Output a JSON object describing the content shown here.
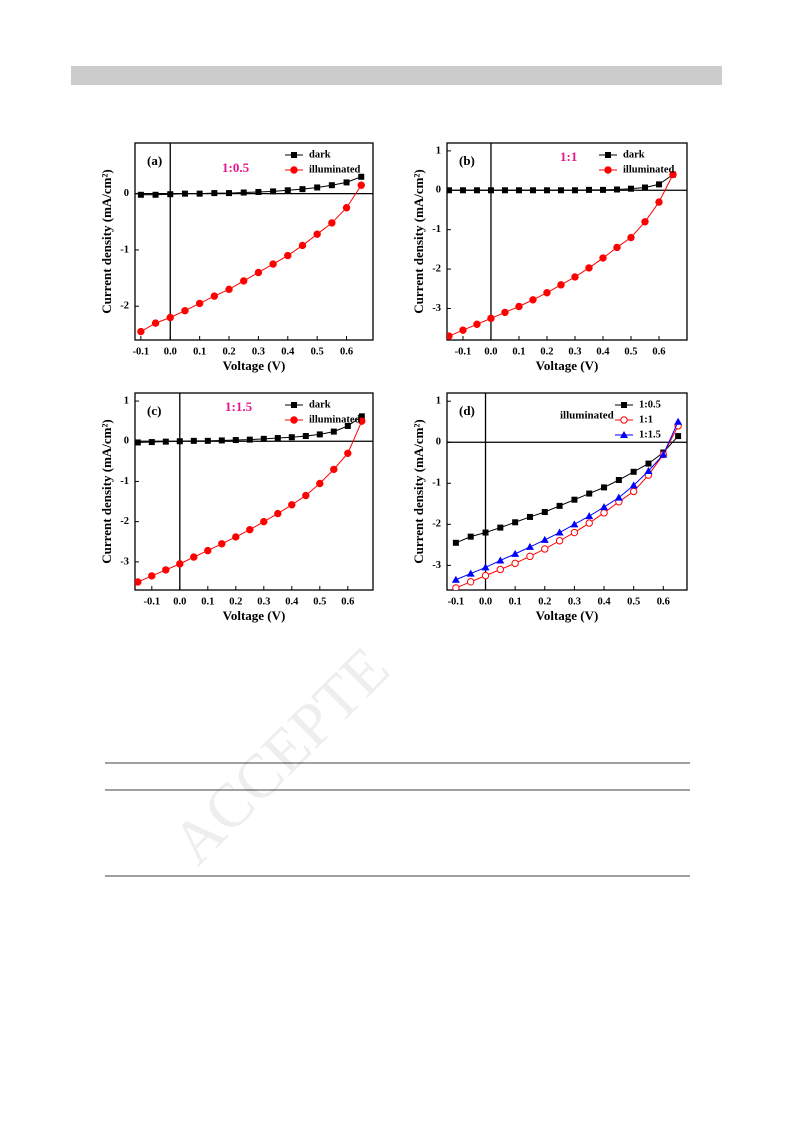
{
  "watermark": "ACCEPTE",
  "chart_data": [
    {
      "type": "line",
      "panel_label": "(a)",
      "annotation": "1:0.5",
      "annotation_color": "#e8158c",
      "x_label": "Voltage (V)",
      "y_label": "Current density (mA/cm²)",
      "legend": "upper right",
      "x": [
        -0.1,
        -0.05,
        0,
        0.05,
        0.1,
        0.15,
        0.2,
        0.25,
        0.3,
        0.35,
        0.4,
        0.45,
        0.5,
        0.55,
        0.6,
        0.65
      ],
      "series": [
        {
          "name": "dark",
          "color": "#000000",
          "marker": "square",
          "values": [
            -0.02,
            -0.02,
            -0.01,
            0,
            0,
            0.01,
            0.01,
            0.02,
            0.03,
            0.04,
            0.06,
            0.08,
            0.11,
            0.15,
            0.2,
            0.3
          ]
        },
        {
          "name": "illuminated",
          "color": "#ff0000",
          "marker": "circle",
          "values": [
            -2.45,
            -2.3,
            -2.2,
            -2.08,
            -1.95,
            -1.82,
            -1.7,
            -1.55,
            -1.4,
            -1.25,
            -1.1,
            -0.92,
            -0.72,
            -0.52,
            -0.25,
            0.15
          ]
        }
      ],
      "xlim": [
        -0.12,
        0.69
      ],
      "ylim": [
        -2.6,
        0.9
      ],
      "xticks": [
        -0.1,
        {
          "value": 0,
          "label": "0.0"
        },
        0.1,
        0.2,
        0.3,
        0.4,
        0.5,
        0.6
      ],
      "yticks": [
        -2,
        -1,
        0
      ]
    },
    {
      "type": "line",
      "panel_label": "(b)",
      "annotation": "1:1",
      "annotation_color": "#e8158c",
      "x_label": "Voltage (V)",
      "y_label": "Current density (mA/cm²)",
      "legend": "upper right",
      "x": [
        -0.15,
        -0.1,
        -0.05,
        0,
        0.05,
        0.1,
        0.15,
        0.2,
        0.25,
        0.3,
        0.35,
        0.4,
        0.45,
        0.5,
        0.55,
        0.6,
        0.65
      ],
      "series": [
        {
          "name": "dark",
          "color": "#000000",
          "marker": "square",
          "values": [
            0,
            0,
            0,
            0,
            0,
            0,
            0,
            0,
            0,
            0,
            0.01,
            0.01,
            0.02,
            0.04,
            0.07,
            0.15,
            0.4
          ]
        },
        {
          "name": "illuminated",
          "color": "#ff0000",
          "marker": "circle",
          "values": [
            -3.7,
            -3.55,
            -3.4,
            -3.25,
            -3.1,
            -2.95,
            -2.78,
            -2.6,
            -2.4,
            -2.2,
            -1.97,
            -1.72,
            -1.45,
            -1.2,
            -0.8,
            -0.3,
            0.4
          ]
        }
      ],
      "xlim": [
        -0.157,
        0.7
      ],
      "ylim": [
        -3.8,
        1.2
      ],
      "xticks": [
        -0.1,
        {
          "value": 0,
          "label": "0.0"
        },
        0.1,
        0.2,
        0.3,
        0.4,
        0.5,
        0.6
      ],
      "yticks": [
        -3,
        -2,
        -1,
        0,
        1
      ]
    },
    {
      "type": "line",
      "panel_label": "(c)",
      "annotation": "1:1.5",
      "annotation_color": "#e8158c",
      "x_label": "Voltage (V)",
      "y_label": "Current density (mA/cm²)",
      "legend": "upper right",
      "x": [
        -0.15,
        -0.1,
        -0.05,
        0,
        0.05,
        0.1,
        0.15,
        0.2,
        0.25,
        0.3,
        0.35,
        0.4,
        0.45,
        0.5,
        0.55,
        0.6,
        0.65
      ],
      "series": [
        {
          "name": "dark",
          "color": "#000000",
          "marker": "square",
          "values": [
            -0.03,
            -0.02,
            -0.01,
            0,
            0.01,
            0.01,
            0.02,
            0.03,
            0.04,
            0.06,
            0.08,
            0.1,
            0.13,
            0.17,
            0.24,
            0.38,
            0.62
          ]
        },
        {
          "name": "illuminated",
          "color": "#ff0000",
          "marker": "circle",
          "values": [
            -3.5,
            -3.35,
            -3.2,
            -3.05,
            -2.88,
            -2.72,
            -2.55,
            -2.38,
            -2.2,
            -2,
            -1.8,
            -1.58,
            -1.35,
            -1.05,
            -0.7,
            -0.3,
            0.5
          ]
        }
      ],
      "xlim": [
        -0.16,
        0.69
      ],
      "ylim": [
        -3.7,
        1.2
      ],
      "xticks": [
        -0.1,
        {
          "value": 0,
          "label": "0.0"
        },
        0.1,
        0.2,
        0.3,
        0.4,
        0.5,
        0.6
      ],
      "yticks": [
        -3,
        -2,
        -1,
        0,
        1
      ]
    },
    {
      "type": "line",
      "panel_label": "(d)",
      "annotation": "illuminated",
      "annotation_color": "#000000",
      "x_label": "Voltage (V)",
      "y_label": "Current density (mA/cm²)",
      "legend": "upper right",
      "x": [
        -0.1,
        -0.05,
        0,
        0.05,
        0.1,
        0.15,
        0.2,
        0.25,
        0.3,
        0.35,
        0.4,
        0.45,
        0.5,
        0.55,
        0.6,
        0.65
      ],
      "series": [
        {
          "name": "1:0.5",
          "color": "#000000",
          "marker": "square",
          "values": [
            -2.45,
            -2.3,
            -2.2,
            -2.08,
            -1.95,
            -1.82,
            -1.7,
            -1.55,
            -1.4,
            -1.25,
            -1.1,
            -0.92,
            -0.72,
            -0.52,
            -0.25,
            0.15
          ]
        },
        {
          "name": "1:1",
          "color": "#ff0000",
          "marker": "circle-open",
          "values": [
            -3.55,
            -3.4,
            -3.25,
            -3.1,
            -2.95,
            -2.78,
            -2.6,
            -2.4,
            -2.2,
            -1.97,
            -1.72,
            -1.45,
            -1.2,
            -0.8,
            -0.3,
            0.4
          ]
        },
        {
          "name": "1:1.5",
          "color": "#0000ff",
          "marker": "triangle",
          "values": [
            -3.35,
            -3.2,
            -3.05,
            -2.88,
            -2.72,
            -2.55,
            -2.38,
            -2.2,
            -2,
            -1.8,
            -1.58,
            -1.35,
            -1.05,
            -0.7,
            -0.3,
            0.5
          ]
        }
      ],
      "xlim": [
        -0.13,
        0.68
      ],
      "ylim": [
        -3.6,
        1.2
      ],
      "xticks": [
        -0.1,
        {
          "value": 0,
          "label": "0.0"
        },
        0.1,
        0.2,
        0.3,
        0.4,
        0.5,
        0.6
      ],
      "yticks": [
        -3,
        -2,
        -1,
        0,
        1
      ]
    }
  ]
}
